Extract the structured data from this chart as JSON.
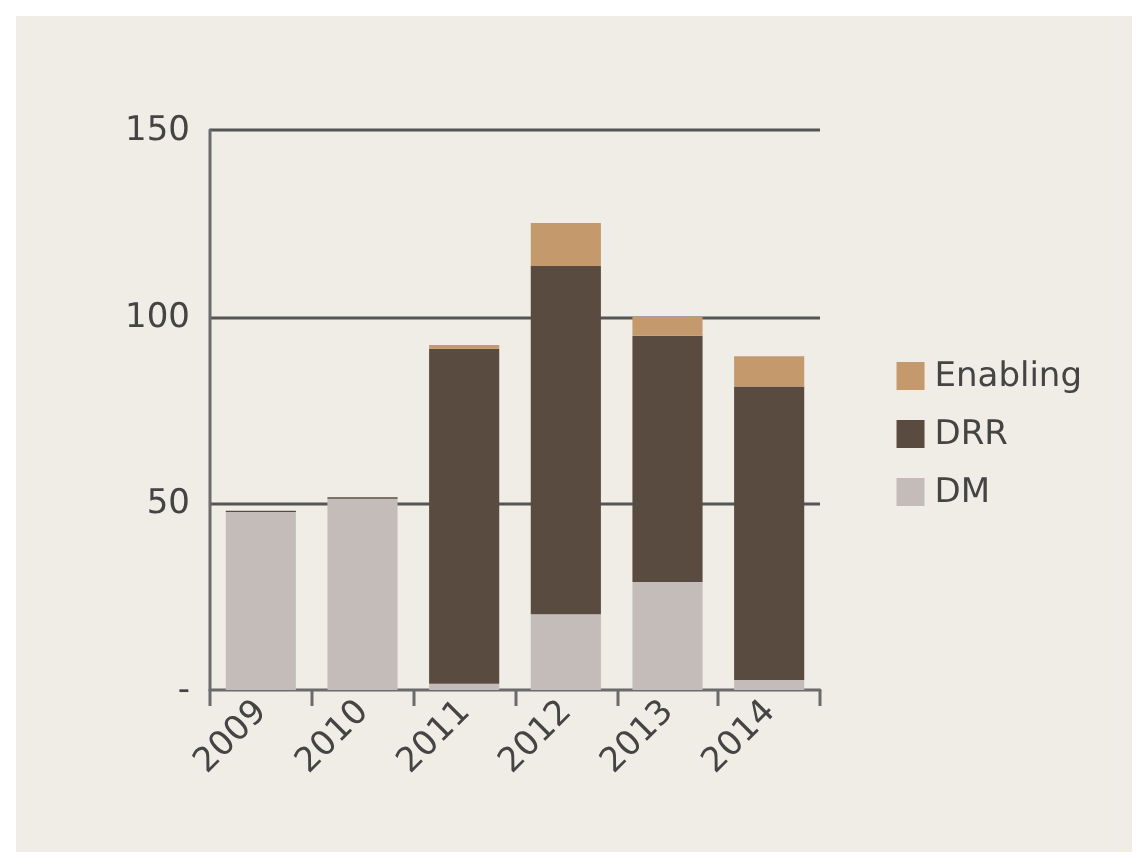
{
  "chart_data": {
    "type": "bar",
    "stacked": true,
    "categories": [
      "2009",
      "2010",
      "2011",
      "2012",
      "2013",
      "2014"
    ],
    "series": [
      {
        "name": "DM",
        "color": "#c4bcb8",
        "values": [
          47.7,
          51.2,
          1.7,
          20.3,
          28.9,
          2.7
        ]
      },
      {
        "name": "DRR",
        "color": "#5a4b41",
        "values": [
          0.3,
          0.4,
          89.7,
          93.3,
          66,
          78.6
        ]
      },
      {
        "name": "Enabling",
        "color": "#c49a6c",
        "values": [
          0,
          0,
          1,
          11.5,
          5,
          8.1
        ]
      }
    ],
    "ylim": [
      0,
      150
    ],
    "yticks": [
      {
        "value": 0,
        "label": "-"
      },
      50,
      100,
      150
    ],
    "grid": "y",
    "legend": "right"
  }
}
